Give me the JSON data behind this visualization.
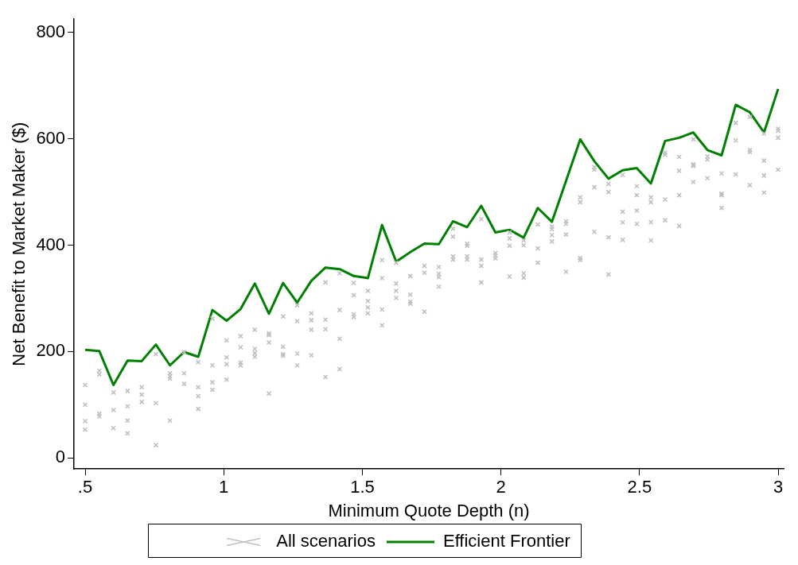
{
  "chart_data": {
    "type": "scatter",
    "xlabel": "Minimum Quote Depth (n)",
    "ylabel": "Net Benefit to Market Maker ($)",
    "xlim": [
      0.46,
      3.02
    ],
    "ylim": [
      -21,
      825
    ],
    "xticks": [
      {
        "value": 0.5,
        "label": ".5"
      },
      1,
      1.5,
      2,
      2.5,
      3
    ],
    "yticks": [
      0,
      200,
      400,
      600,
      800
    ],
    "grid": false,
    "legend": "bottom",
    "series": [
      {
        "name": "All scenarios",
        "marker": "cross",
        "color": "#c0c0c0",
        "x": [
          0.5,
          0.5,
          0.5,
          0.5,
          0.551,
          0.551,
          0.551,
          0.551,
          0.602,
          0.602,
          0.602,
          0.653,
          0.653,
          0.653,
          0.653,
          0.704,
          0.704,
          0.704,
          0.755,
          0.755,
          0.755,
          0.806,
          0.806,
          0.806,
          0.806,
          0.857,
          0.857,
          0.857,
          0.908,
          0.908,
          0.908,
          0.908,
          0.959,
          0.959,
          0.959,
          0.959,
          1.01,
          1.01,
          1.01,
          1.01,
          1.061,
          1.061,
          1.061,
          1.061,
          1.112,
          1.112,
          1.112,
          1.112,
          1.163,
          1.163,
          1.163,
          1.163,
          1.214,
          1.214,
          1.214,
          1.214,
          1.265,
          1.265,
          1.265,
          1.265,
          1.316,
          1.316,
          1.316,
          1.316,
          1.367,
          1.367,
          1.367,
          1.367,
          1.418,
          1.418,
          1.418,
          1.418,
          1.469,
          1.469,
          1.469,
          1.469,
          1.52,
          1.52,
          1.52,
          1.52,
          1.571,
          1.571,
          1.571,
          1.571,
          1.622,
          1.622,
          1.622,
          1.622,
          1.673,
          1.673,
          1.673,
          1.673,
          1.724,
          1.724,
          1.724,
          1.776,
          1.776,
          1.776,
          1.776,
          1.827,
          1.827,
          1.827,
          1.827,
          1.878,
          1.878,
          1.878,
          1.878,
          1.929,
          1.929,
          1.929,
          1.929,
          1.98,
          1.98,
          1.98,
          2.031,
          2.031,
          2.031,
          2.031,
          2.082,
          2.082,
          2.082,
          2.082,
          2.133,
          2.133,
          2.133,
          2.184,
          2.184,
          2.184,
          2.184,
          2.235,
          2.235,
          2.235,
          2.235,
          2.286,
          2.286,
          2.286,
          2.286,
          2.337,
          2.337,
          2.337,
          2.337,
          2.388,
          2.388,
          2.388,
          2.388,
          2.439,
          2.439,
          2.439,
          2.439,
          2.49,
          2.49,
          2.49,
          2.49,
          2.541,
          2.541,
          2.541,
          2.541,
          2.592,
          2.592,
          2.592,
          2.592,
          2.643,
          2.643,
          2.643,
          2.643,
          2.694,
          2.694,
          2.694,
          2.694,
          2.745,
          2.745,
          2.745,
          2.796,
          2.796,
          2.796,
          2.796,
          2.847,
          2.847,
          2.847,
          2.898,
          2.898,
          2.898,
          2.898,
          2.949,
          2.949,
          2.949,
          2.949,
          3.0,
          3.0,
          3.0,
          3.0
        ],
        "values": [
          137,
          100,
          69,
          53,
          164,
          157,
          83,
          78,
          123,
          90,
          56,
          126,
          97,
          70,
          46,
          133,
          119,
          105,
          195,
          103,
          24,
          159,
          154,
          149,
          70,
          199,
          159,
          139,
          180,
          133,
          116,
          92,
          262,
          174,
          142,
          128,
          221,
          189,
          176,
          147,
          229,
          208,
          179,
          174,
          241,
          205,
          197,
          190,
          234,
          231,
          217,
          121,
          266,
          209,
          195,
          192,
          287,
          257,
          196,
          174,
          272,
          259,
          241,
          193,
          330,
          260,
          242,
          152,
          347,
          278,
          224,
          167,
          329,
          306,
          270,
          265,
          314,
          295,
          283,
          272,
          372,
          338,
          279,
          249,
          367,
          328,
          314,
          301,
          342,
          307,
          294,
          290,
          361,
          348,
          275,
          359,
          346,
          340,
          322,
          431,
          416,
          379,
          373,
          403,
          399,
          379,
          373,
          449,
          373,
          361,
          330,
          385,
          380,
          375,
          424,
          413,
          399,
          341,
          409,
          400,
          347,
          339,
          439,
          394,
          367,
          435,
          430,
          419,
          407,
          445,
          440,
          420,
          350,
          490,
          481,
          376,
          372,
          547,
          542,
          509,
          425,
          515,
          500,
          415,
          345,
          532,
          463,
          443,
          410,
          511,
          494,
          465,
          440,
          490,
          481,
          443,
          409,
          574,
          570,
          486,
          447,
          566,
          540,
          494,
          436,
          599,
          552,
          549,
          519,
          567,
          561,
          526,
          535,
          497,
          494,
          470,
          630,
          597,
          533,
          641,
          579,
          575,
          513,
          610,
          559,
          531,
          499,
          619,
          615,
          602,
          542
        ]
      },
      {
        "name": "Efficient Frontier",
        "type": "line",
        "marker": "none",
        "line_style": "solid",
        "color": "#008000",
        "x": [
          0.5,
          0.551,
          0.602,
          0.653,
          0.704,
          0.755,
          0.806,
          0.857,
          0.908,
          0.959,
          1.01,
          1.061,
          1.112,
          1.163,
          1.214,
          1.265,
          1.316,
          1.367,
          1.418,
          1.469,
          1.52,
          1.571,
          1.622,
          1.673,
          1.724,
          1.776,
          1.827,
          1.878,
          1.929,
          1.98,
          2.031,
          2.082,
          2.133,
          2.184,
          2.235,
          2.286,
          2.337,
          2.388,
          2.439,
          2.49,
          2.541,
          2.592,
          2.643,
          2.694,
          2.745,
          2.796,
          2.847,
          2.898,
          2.949,
          3.0
        ],
        "values": [
          203,
          201,
          137,
          183,
          182,
          213,
          174,
          199,
          190,
          278,
          258,
          280,
          328,
          271,
          329,
          292,
          333,
          358,
          355,
          342,
          338,
          438,
          369,
          387,
          403,
          402,
          445,
          434,
          474,
          424,
          429,
          414,
          470,
          444,
          521,
          599,
          558,
          525,
          541,
          545,
          516,
          596,
          602,
          612,
          579,
          569,
          664,
          650,
          612,
          694
        ]
      }
    ]
  }
}
